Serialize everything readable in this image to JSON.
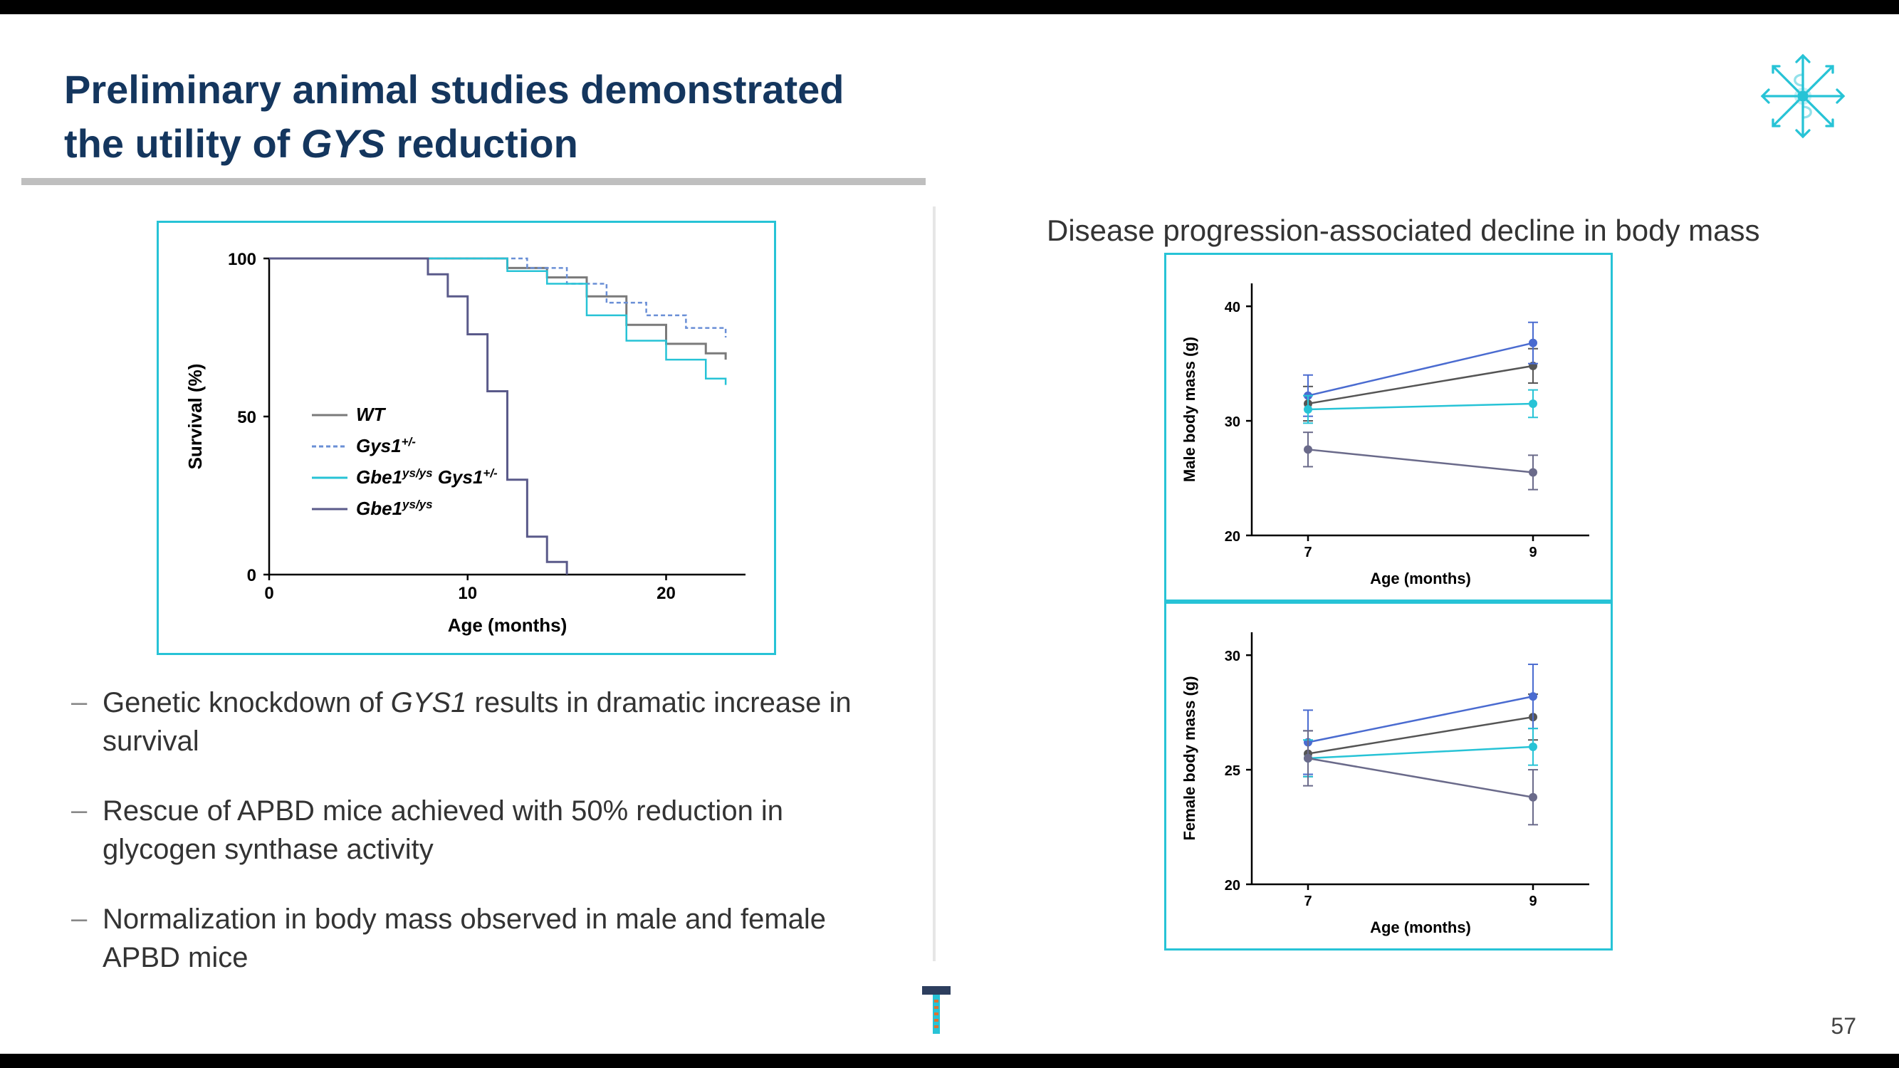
{
  "title_line1": "Preliminary animal studies demonstrated",
  "title_line2_a": "the utility of ",
  "title_line2_ital": "GYS",
  "title_line2_b": " reduction",
  "right_header": "Disease progression-associated decline in body mass",
  "page_number": "57",
  "bullets": [
    {
      "pre": "Genetic knockdown of ",
      "ital": "GYS1",
      "post": " results in dramatic increase in survival"
    },
    {
      "pre": "Rescue of APBD mice achieved with 50% reduction in glycogen synthase activity",
      "ital": "",
      "post": ""
    },
    {
      "pre": "Normalization in body mass observed in male and female APBD mice",
      "ital": "",
      "post": ""
    }
  ],
  "survival_chart": {
    "xlabel": "Age (months)",
    "ylabel": "Survival (%)",
    "ylim": [
      0,
      100
    ],
    "yticks": [
      0,
      50,
      100
    ],
    "xlim": [
      0,
      24
    ],
    "xticks": [
      0,
      10,
      20
    ],
    "legend": [
      {
        "label_a": "WT",
        "label_b": "",
        "color": "#7a7a7a",
        "dash": "0"
      },
      {
        "label_a": "Gys1",
        "label_b": "+/-",
        "color": "#6a8fd6",
        "dash": "6,4"
      },
      {
        "label_a": "Gbe1",
        "label_b": "ys/ys",
        "label_c": " Gys1",
        "label_d": "+/-",
        "color": "#27c3d6",
        "dash": "0"
      },
      {
        "label_a": "Gbe1",
        "label_b": "ys/ys",
        "color": "#5a5a8a",
        "dash": "0"
      }
    ],
    "series": {
      "WT": [
        [
          0,
          100
        ],
        [
          6,
          100
        ],
        [
          10,
          100
        ],
        [
          12,
          97
        ],
        [
          14,
          94
        ],
        [
          16,
          88
        ],
        [
          18,
          79
        ],
        [
          20,
          73
        ],
        [
          22,
          70
        ],
        [
          23,
          68
        ]
      ],
      "Gys1": [
        [
          0,
          100
        ],
        [
          8,
          100
        ],
        [
          11,
          100
        ],
        [
          13,
          97
        ],
        [
          15,
          92
        ],
        [
          17,
          86
        ],
        [
          19,
          82
        ],
        [
          21,
          78
        ],
        [
          23,
          75
        ]
      ],
      "Gbe1Gys1": [
        [
          0,
          100
        ],
        [
          7,
          100
        ],
        [
          10,
          100
        ],
        [
          12,
          96
        ],
        [
          14,
          92
        ],
        [
          16,
          82
        ],
        [
          18,
          74
        ],
        [
          20,
          68
        ],
        [
          22,
          62
        ],
        [
          23,
          60
        ]
      ],
      "Gbe1": [
        [
          0,
          100
        ],
        [
          6,
          100
        ],
        [
          8,
          95
        ],
        [
          9,
          88
        ],
        [
          10,
          76
        ],
        [
          11,
          58
        ],
        [
          12,
          30
        ],
        [
          13,
          12
        ],
        [
          14,
          4
        ],
        [
          15,
          0
        ]
      ]
    },
    "series_style": {
      "WT": {
        "color": "#7a7a7a",
        "dash": "0",
        "width": 3
      },
      "Gys1": {
        "color": "#6a8fd6",
        "dash": "6,4",
        "width": 2.5
      },
      "Gbe1Gys1": {
        "color": "#27c3d6",
        "dash": "0",
        "width": 2.5
      },
      "Gbe1": {
        "color": "#5a5a8a",
        "dash": "0",
        "width": 3
      }
    }
  },
  "male_chart": {
    "ylabel": "Male body mass (g)",
    "xlabel": "Age (months)",
    "ylim": [
      20,
      42
    ],
    "yticks": [
      20,
      30,
      40
    ],
    "xlim": [
      6.5,
      9.5
    ],
    "xticks": [
      7,
      9
    ],
    "series": [
      {
        "color": "#555555",
        "pts": [
          [
            7,
            31.5
          ],
          [
            9,
            34.8
          ]
        ],
        "err": 1.5
      },
      {
        "color": "#4a6bd0",
        "pts": [
          [
            7,
            32.2
          ],
          [
            9,
            36.8
          ]
        ],
        "err": 1.8
      },
      {
        "color": "#27c3d6",
        "pts": [
          [
            7,
            31.0
          ],
          [
            9,
            31.5
          ]
        ],
        "err": 1.2
      },
      {
        "color": "#6a6a8a",
        "pts": [
          [
            7,
            27.5
          ],
          [
            9,
            25.5
          ]
        ],
        "err": 1.5
      }
    ]
  },
  "female_chart": {
    "ylabel": "Female body mass (g)",
    "xlabel": "Age (months)",
    "ylim": [
      20,
      31
    ],
    "yticks": [
      20,
      25,
      30
    ],
    "xlim": [
      6.5,
      9.5
    ],
    "xticks": [
      7,
      9
    ],
    "series": [
      {
        "color": "#555555",
        "pts": [
          [
            7,
            25.7
          ],
          [
            9,
            27.3
          ]
        ],
        "err": 1.0
      },
      {
        "color": "#4a6bd0",
        "pts": [
          [
            7,
            26.2
          ],
          [
            9,
            28.2
          ]
        ],
        "err": 1.4
      },
      {
        "color": "#27c3d6",
        "pts": [
          [
            7,
            25.5
          ],
          [
            9,
            26.0
          ]
        ],
        "err": 0.8
      },
      {
        "color": "#6a6a8a",
        "pts": [
          [
            7,
            25.5
          ],
          [
            9,
            23.8
          ]
        ],
        "err": 1.2
      }
    ]
  }
}
